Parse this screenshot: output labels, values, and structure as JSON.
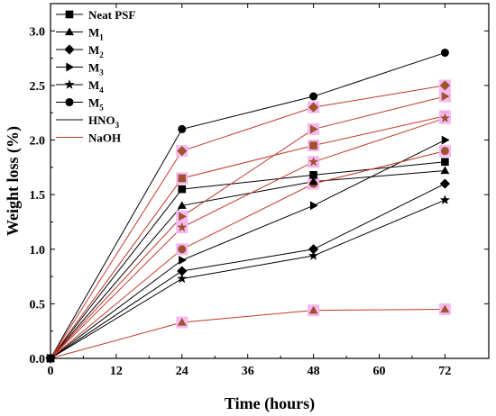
{
  "chart_data": {
    "type": "line",
    "title": "",
    "xlabel": "Time (hours)",
    "ylabel": "Weight loss (%)",
    "xlim": [
      0,
      80
    ],
    "ylim": [
      0,
      3.25
    ],
    "xticks": [
      0,
      12,
      24,
      36,
      48,
      60,
      72
    ],
    "yticks": [
      0.0,
      0.5,
      1.0,
      1.5,
      2.0,
      2.5,
      3.0
    ],
    "xtick_labels": [
      "0",
      "12",
      "24",
      "36",
      "48",
      "60",
      "72"
    ],
    "ytick_labels": [
      "0.0",
      "0.5",
      "1.0",
      "1.5",
      "2.0",
      "2.5",
      "3.0"
    ],
    "x": [
      0,
      24,
      48,
      72
    ],
    "grid": false,
    "legend_position": "top-left",
    "legend": [
      {
        "label": "Neat PSF",
        "sub": "",
        "marker": "square"
      },
      {
        "label": "M",
        "sub": "1",
        "marker": "triangle"
      },
      {
        "label": "M",
        "sub": "2",
        "marker": "diamond"
      },
      {
        "label": "M",
        "sub": "3",
        "marker": "right-triangle"
      },
      {
        "label": "M",
        "sub": "4",
        "marker": "star"
      },
      {
        "label": "M",
        "sub": "5",
        "marker": "circle"
      },
      {
        "label": "HNO",
        "sub": "3",
        "line_color": "#000000"
      },
      {
        "label": "NaOH",
        "sub": "",
        "line_color": "#c0392b",
        "text_color": "#c0392b"
      }
    ],
    "colors": {
      "HNO3_line": "#000000",
      "NaOH_line": "#c0392b",
      "HNO3_marker": "#000000",
      "NaOH_marker_fill": "#a0522d",
      "NaOH_marker_halo": "#f5b8f0"
    },
    "series": [
      {
        "sample": "Neat PSF",
        "medium": "HNO3",
        "marker": "square",
        "values": [
          0,
          1.55,
          1.68,
          1.8
        ]
      },
      {
        "sample": "M1",
        "medium": "HNO3",
        "marker": "triangle",
        "values": [
          0,
          1.4,
          1.62,
          1.72
        ]
      },
      {
        "sample": "M2",
        "medium": "HNO3",
        "marker": "diamond",
        "values": [
          0,
          0.8,
          1.0,
          1.6
        ]
      },
      {
        "sample": "M3",
        "medium": "HNO3",
        "marker": "right-triangle",
        "values": [
          0,
          0.9,
          1.4,
          2.0
        ]
      },
      {
        "sample": "M4",
        "medium": "HNO3",
        "marker": "star",
        "values": [
          0,
          0.73,
          0.94,
          1.45
        ]
      },
      {
        "sample": "M5",
        "medium": "HNO3",
        "marker": "circle",
        "values": [
          0,
          2.1,
          2.4,
          2.8
        ]
      },
      {
        "sample": "Neat PSF",
        "medium": "NaOH",
        "marker": "square",
        "values": [
          0,
          1.65,
          1.95,
          2.22
        ]
      },
      {
        "sample": "M1",
        "medium": "NaOH",
        "marker": "triangle",
        "values": [
          0,
          0.33,
          0.44,
          0.45
        ]
      },
      {
        "sample": "M2",
        "medium": "NaOH",
        "marker": "diamond",
        "values": [
          0,
          1.9,
          2.3,
          2.5
        ]
      },
      {
        "sample": "M3",
        "medium": "NaOH",
        "marker": "right-triangle",
        "values": [
          0,
          1.3,
          2.1,
          2.4
        ]
      },
      {
        "sample": "M4",
        "medium": "NaOH",
        "marker": "star",
        "values": [
          0,
          1.2,
          1.8,
          2.2
        ]
      },
      {
        "sample": "M5",
        "medium": "NaOH",
        "marker": "circle",
        "values": [
          0,
          1.0,
          1.6,
          1.9
        ]
      }
    ]
  }
}
